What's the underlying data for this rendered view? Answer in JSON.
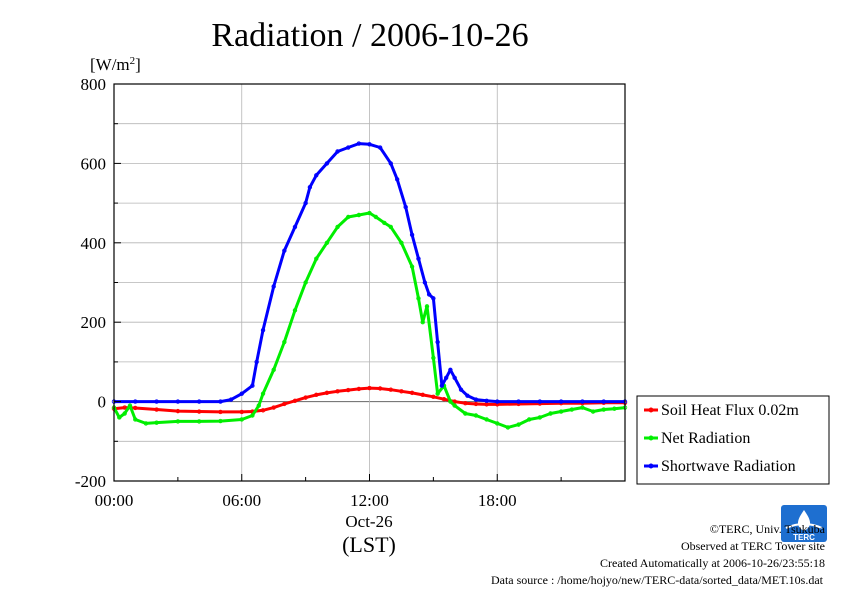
{
  "chart_data": {
    "type": "line",
    "title": "Radiation / 2006-10-26",
    "ylabel_unit": "[W/m",
    "ylabel_sup": "2",
    "ylabel_close": "]",
    "ylim": [
      -200,
      800
    ],
    "yticks": [
      -200,
      0,
      200,
      400,
      600,
      800
    ],
    "ytick_labels": [
      "-200",
      "0",
      "200",
      "400",
      "600",
      "800"
    ],
    "xlim": [
      0,
      24
    ],
    "xticks": [
      0,
      6,
      12,
      18
    ],
    "xtick_labels": [
      "00:00",
      "06:00",
      "12:00",
      "18:00"
    ],
    "xdate": "Oct-26",
    "xlabel": "(LST)",
    "grid": true,
    "legend_position": "right",
    "series": [
      {
        "name": "Soil Heat Flux 0.02m",
        "color": "#ff0000",
        "x": [
          0,
          0.5,
          1,
          2,
          3,
          4,
          5,
          6,
          6.5,
          7,
          7.5,
          8,
          8.5,
          9,
          9.5,
          10,
          10.5,
          11,
          11.5,
          12,
          12.5,
          13,
          13.5,
          14,
          14.5,
          15,
          15.5,
          16,
          16.5,
          17,
          17.5,
          18,
          19,
          20,
          21,
          22,
          23,
          24
        ],
        "y": [
          -18,
          -15,
          -16,
          -20,
          -24,
          -25,
          -26,
          -26,
          -25,
          -22,
          -15,
          -6,
          2,
          10,
          17,
          22,
          26,
          29,
          32,
          34,
          33,
          30,
          26,
          22,
          17,
          12,
          6,
          0,
          -4,
          -6,
          -7,
          -7,
          -6,
          -5,
          -4,
          -4,
          -3,
          -3
        ]
      },
      {
        "name": "Net Radiation",
        "color": "#00ee00",
        "x": [
          0,
          0.25,
          0.5,
          0.75,
          1,
          1.5,
          2,
          3,
          4,
          5,
          6,
          6.5,
          6.8,
          7,
          7.5,
          8,
          8.5,
          9,
          9.5,
          10,
          10.5,
          11,
          11.5,
          12,
          12.3,
          12.7,
          13,
          13.5,
          14,
          14.3,
          14.5,
          14.7,
          15,
          15.2,
          15.5,
          15.8,
          16,
          16.5,
          17,
          17.5,
          18,
          18.5,
          19,
          19.5,
          20,
          20.5,
          21,
          21.5,
          22,
          22.5,
          23,
          23.5,
          24
        ],
        "y": [
          -15,
          -40,
          -30,
          -10,
          -45,
          -55,
          -53,
          -50,
          -50,
          -49,
          -45,
          -35,
          -10,
          20,
          80,
          150,
          230,
          300,
          360,
          400,
          440,
          465,
          470,
          475,
          465,
          450,
          440,
          400,
          340,
          260,
          200,
          240,
          110,
          20,
          40,
          0,
          -10,
          -30,
          -35,
          -45,
          -55,
          -65,
          -58,
          -45,
          -40,
          -30,
          -25,
          -20,
          -15,
          -25,
          -20,
          -18,
          -15
        ]
      },
      {
        "name": "Shortwave Radiation",
        "color": "#0000ff",
        "x": [
          0,
          1,
          2,
          3,
          4,
          5,
          5.5,
          6,
          6.5,
          6.7,
          7,
          7.5,
          8,
          8.5,
          9,
          9.2,
          9.5,
          10,
          10.5,
          11,
          11.5,
          12,
          12.5,
          13,
          13.3,
          13.7,
          14,
          14.3,
          14.6,
          14.8,
          15,
          15.2,
          15.4,
          15.6,
          15.8,
          16,
          16.3,
          16.6,
          17,
          17.5,
          18,
          19,
          20,
          21,
          22,
          23,
          24
        ],
        "y": [
          0,
          0,
          0,
          0,
          0,
          0,
          5,
          20,
          40,
          100,
          180,
          290,
          380,
          440,
          500,
          540,
          570,
          600,
          630,
          640,
          650,
          648,
          640,
          600,
          560,
          490,
          420,
          360,
          300,
          270,
          260,
          150,
          40,
          60,
          80,
          60,
          30,
          15,
          5,
          2,
          0,
          0,
          0,
          0,
          0,
          0,
          0
        ]
      }
    ]
  },
  "credits": {
    "copyright": "©TERC, Univ. Tsukuba",
    "site": "Observed at TERC Tower site",
    "created": "Created Automatically at 2006-10-26/23:55:18",
    "source": "Data source : /home/hojyo/new/TERC-data/sorted_data/MET.10s.dat"
  },
  "logo": {
    "text": "TERC",
    "color": "#1e6fd0"
  }
}
